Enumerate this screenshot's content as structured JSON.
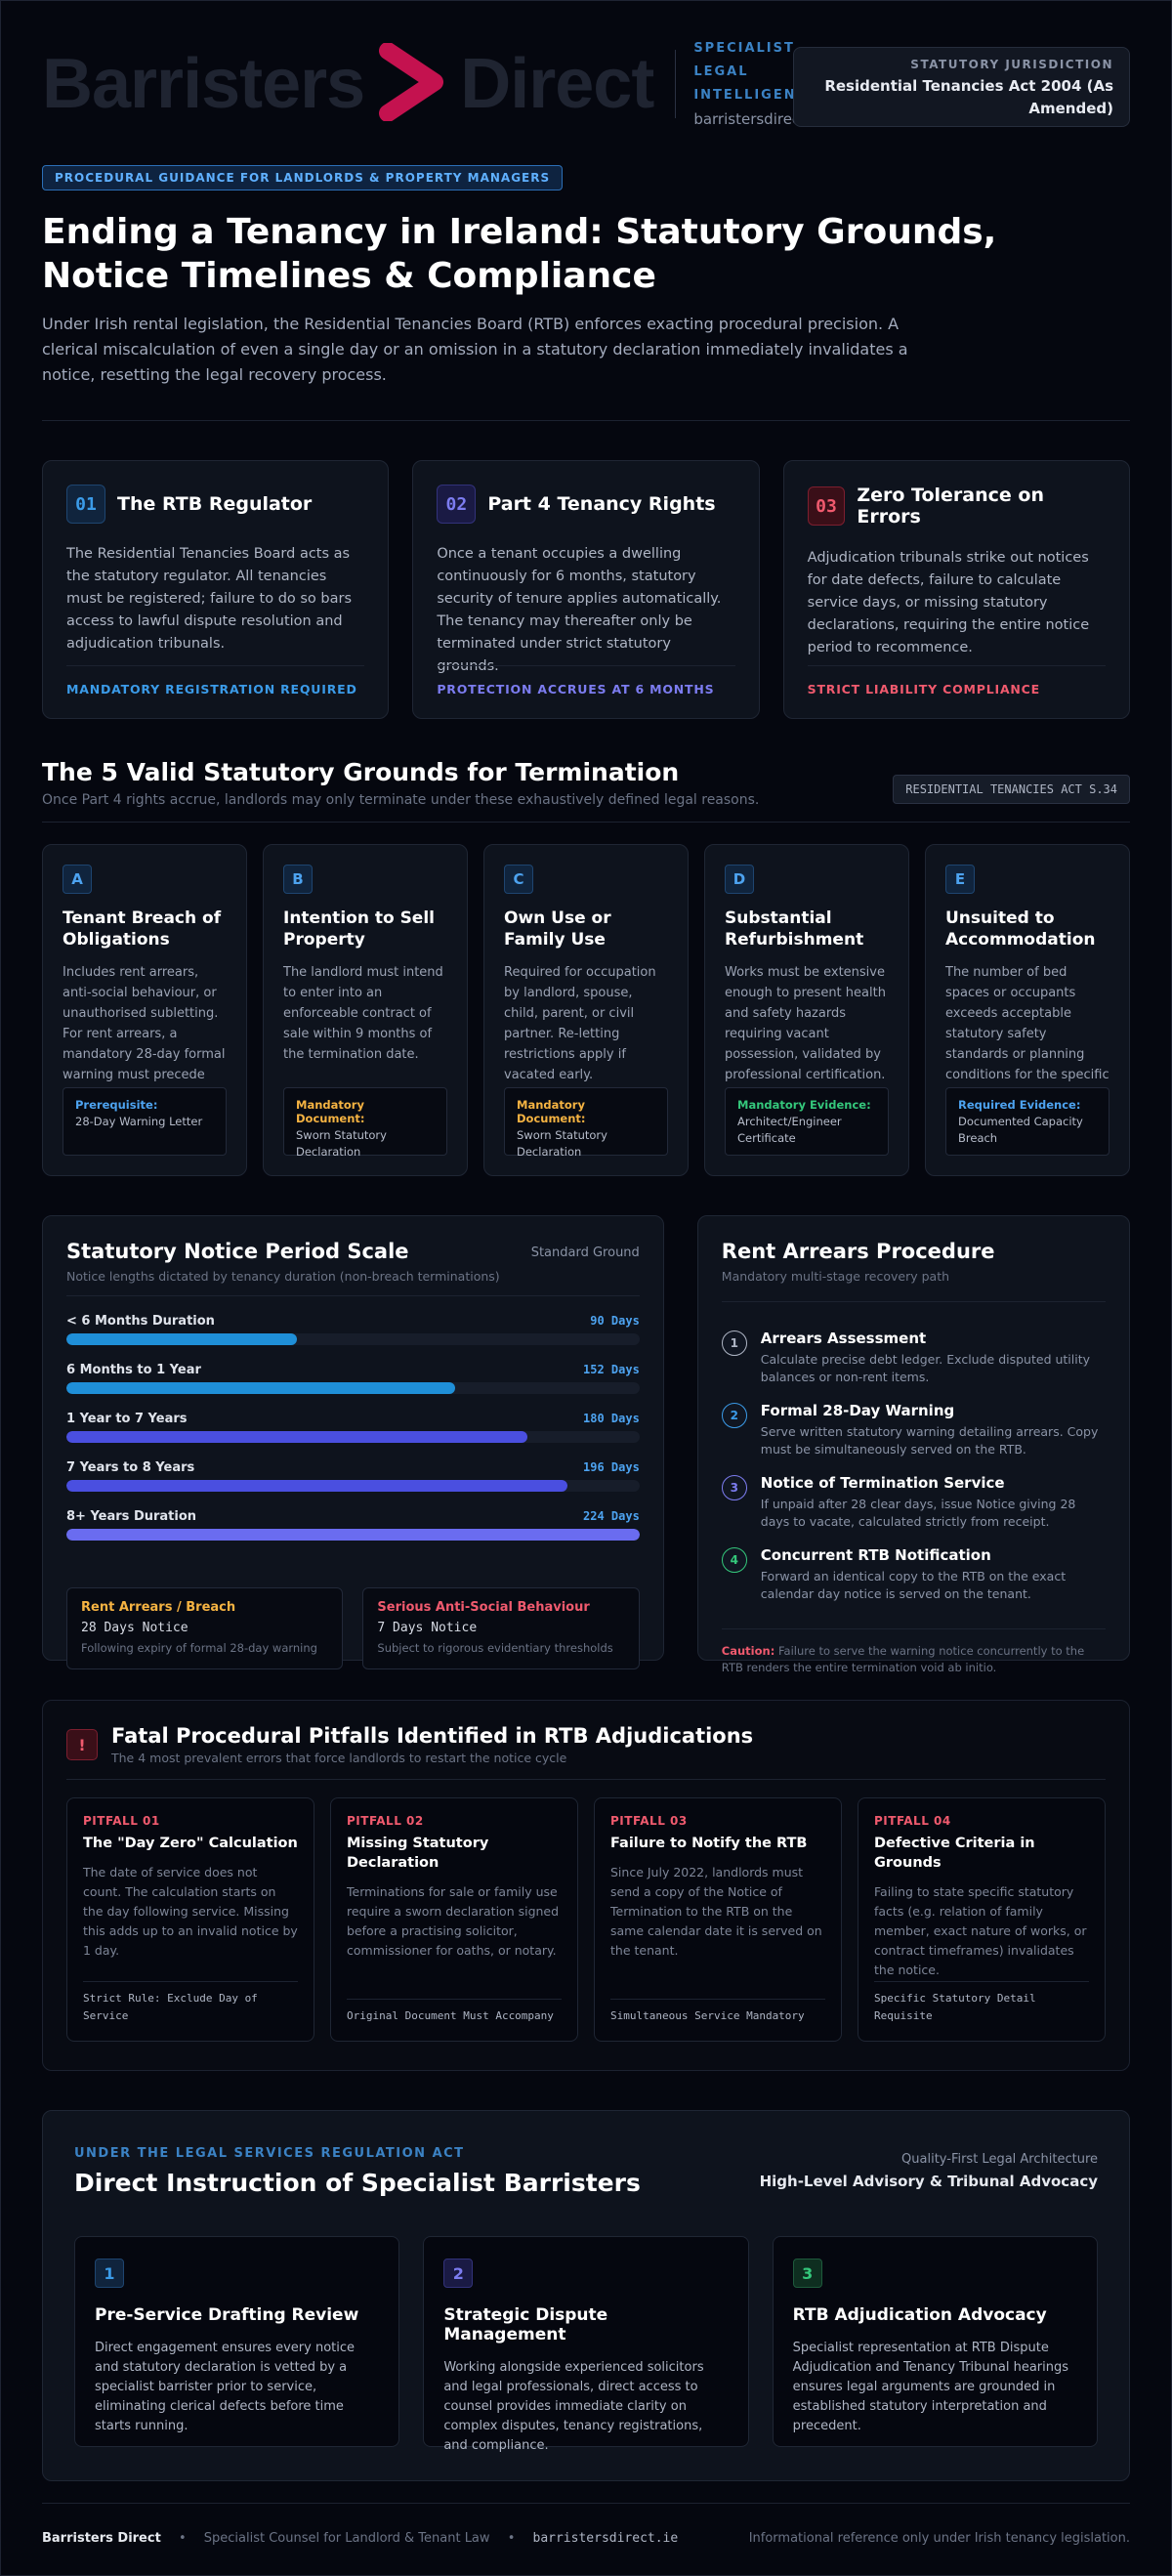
{
  "header": {
    "logo_left": "Barristers",
    "logo_right": "Direct",
    "tagline": [
      "SPECIALIST",
      "LEGAL",
      "INTELLIGENCE"
    ],
    "url": "barristersdirect.ie",
    "jurisdiction_label": "STATUTORY JURISDICTION",
    "jurisdiction_value": "Residential Tenancies Act 2004 (As Amended)"
  },
  "intro": {
    "pill": "PROCEDURAL GUIDANCE FOR LANDLORDS & PROPERTY MANAGERS",
    "title": "Ending a Tenancy in Ireland: Statutory Grounds, Notice Timelines & Compliance",
    "lead": "Under Irish rental legislation, the Residential Tenancies Board (RTB) enforces exacting procedural precision. A clerical miscalculation of even a single day or an omission in a statutory declaration immediately invalidates a notice, resetting the legal recovery process."
  },
  "pillars": [
    {
      "num": "01",
      "title": "The RTB Regulator",
      "body": "The Residential Tenancies Board acts as the statutory regulator. All tenancies must be registered; failure to do so bars access to lawful dispute resolution and adjudication tribunals.",
      "foot": "MANDATORY REGISTRATION REQUIRED",
      "color": "#3b9be8",
      "bg": "#10243d",
      "border": "#1e4570"
    },
    {
      "num": "02",
      "title": "Part 4 Tenancy Rights",
      "body": "Once a tenant occupies a dwelling continuously for 6 months, statutory security of tenure applies automatically. The tenancy may thereafter only be terminated under strict statutory grounds.",
      "foot": "PROTECTION ACCRUES AT 6 MONTHS",
      "color": "#7c7cf0",
      "bg": "#1a1a44",
      "border": "#32327a"
    },
    {
      "num": "03",
      "title": "Zero Tolerance on Errors",
      "body": "Adjudication tribunals strike out notices for date defects, failure to calculate service days, or missing statutory declarations, requiring the entire notice period to recommence.",
      "foot": "STRICT LIABILITY COMPLIANCE",
      "color": "#f05a6e",
      "bg": "#3a0f18",
      "border": "#7c1f2f"
    }
  ],
  "grounds_section": {
    "title": "The 5 Valid Statutory Grounds for Termination",
    "subtitle": "Once Part 4 rights accrue, landlords may only terminate under these exhaustively defined legal reasons.",
    "tag": "RESIDENTIAL TENANCIES ACT S.34",
    "items": [
      {
        "letter": "A",
        "title": "Tenant Breach of Obligations",
        "body": "Includes rent arrears, anti-social behaviour, or unauthorised subletting. For rent arrears, a mandatory 28-day formal warning must precede notice service.",
        "req_label": "Prerequisite:",
        "req_value": "28-Day Warning Letter",
        "req_color": "#4da3f0"
      },
      {
        "letter": "B",
        "title": "Intention to Sell Property",
        "body": "The landlord must intend to enter into an enforceable contract of sale within 9 months of the termination date.",
        "req_label": "Mandatory Document:",
        "req_value": "Sworn Statutory Declaration",
        "req_color": "#f5b342"
      },
      {
        "letter": "C",
        "title": "Own Use or Family Use",
        "body": "Required for occupation by landlord, spouse, child, parent, or civil partner. Re-letting restrictions apply if vacated early.",
        "req_label": "Mandatory Document:",
        "req_value": "Sworn Statutory Declaration",
        "req_color": "#f5b342"
      },
      {
        "letter": "D",
        "title": "Substantial Refurbishment",
        "body": "Works must be extensive enough to present health and safety hazards requiring vacant possession, validated by professional certification.",
        "req_label": "Mandatory Evidence:",
        "req_value": "Architect/Engineer Certificate",
        "req_color": "#34c77b"
      },
      {
        "letter": "E",
        "title": "Unsuited to Accommodation",
        "body": "The number of bed spaces or occupants exceeds acceptable statutory safety standards or planning conditions for the specific dwelling.",
        "req_label": "Required Evidence:",
        "req_value": "Documented Capacity Breach",
        "req_color": "#4da3f0"
      }
    ]
  },
  "notice_scale": {
    "title": "Statutory Notice Period Scale",
    "subtitle": "Notice lengths dictated by tenancy duration (non-breach terminations)",
    "right_label": "Standard Ground",
    "max_days": 224,
    "bars": [
      {
        "label": "< 6 Months Duration",
        "days_text": "90 Days",
        "days": 90,
        "color": "#1f8fd8"
      },
      {
        "label": "6 Months to 1 Year",
        "days_text": "152 Days",
        "days": 152,
        "color": "#1f8fd8"
      },
      {
        "label": "1 Year to 7 Years",
        "days_text": "180 Days",
        "days": 180,
        "color": "#4a4fe0"
      },
      {
        "label": "7 Years to 8 Years",
        "days_text": "196 Days",
        "days": 196,
        "color": "#4a4fe0"
      },
      {
        "label": "8+ Years Duration",
        "days_text": "224 Days",
        "days": 224,
        "color": "#6a6cf0"
      }
    ],
    "label_colors": [
      "#4da3f0",
      "#4da3f0",
      "#4da3f0",
      "#4da3f0",
      "#4da3f0"
    ],
    "mini": [
      {
        "head": "Rent Arrears / Breach",
        "main": "28 Days Notice",
        "sub": "Following expiry of formal 28-day warning",
        "color": "#f5b342"
      },
      {
        "head": "Serious Anti-Social Behaviour",
        "main": "7 Days Notice",
        "sub": "Subject to rigorous evidentiary thresholds",
        "color": "#f05a6e"
      }
    ]
  },
  "arrears": {
    "title": "Rent Arrears Procedure",
    "subtitle": "Mandatory multi-stage recovery path",
    "steps": [
      {
        "n": "1",
        "title": "Arrears Assessment",
        "body": "Calculate precise debt ledger. Exclude disputed utility balances or non-rent items.",
        "color": "#aeb5c4"
      },
      {
        "n": "2",
        "title": "Formal 28-Day Warning",
        "body": "Serve written statutory warning detailing arrears. Copy must be simultaneously served on the RTB.",
        "color": "#3b9be8"
      },
      {
        "n": "3",
        "title": "Notice of Termination Service",
        "body": "If unpaid after 28 clear days, issue Notice giving 28 days to vacate, calculated strictly from receipt.",
        "color": "#7c7cf0"
      },
      {
        "n": "4",
        "title": "Concurrent RTB Notification",
        "body": "Forward an identical copy to the RTB on the exact calendar day notice is served on the tenant.",
        "color": "#34c77b"
      }
    ],
    "caution_label": "Caution:",
    "caution_text": "Failure to serve the warning notice concurrently to the RTB renders the entire termination void ab initio."
  },
  "pitfalls": {
    "icon": "!",
    "title": "Fatal Procedural Pitfalls Identified in RTB Adjudications",
    "subtitle": "The 4 most prevalent errors that force landlords to restart the notice cycle",
    "items": [
      {
        "tag": "PITFALL 01",
        "title": "The \"Day Zero\" Calculation",
        "body": "The date of service does not count. The calculation starts on the day following service. Missing this adds up to an invalid notice by 1 day.",
        "foot": "Strict Rule: Exclude Day of Service"
      },
      {
        "tag": "PITFALL 02",
        "title": "Missing Statutory Declaration",
        "body": "Terminations for sale or family use require a sworn declaration signed before a practising solicitor, commissioner for oaths, or notary.",
        "foot": "Original Document Must Accompany"
      },
      {
        "tag": "PITFALL 03",
        "title": "Failure to Notify the RTB",
        "body": "Since July 2022, landlords must send a copy of the Notice of Termination to the RTB on the same calendar date it is served on the tenant.",
        "foot": "Simultaneous Service Mandatory"
      },
      {
        "tag": "PITFALL 04",
        "title": "Defective Criteria in Grounds",
        "body": "Failing to state specific statutory facts (e.g. relation of family member, exact nature of works, or contract timeframes) invalidates the notice.",
        "foot": "Specific Statutory Detail Requisite"
      }
    ]
  },
  "instruction": {
    "eyebrow": "UNDER THE LEGAL SERVICES REGULATION ACT",
    "title": "Direct Instruction of Specialist Barristers",
    "right_a": "Quality-First Legal Architecture",
    "right_b": "High-Level Advisory & Tribunal Advocacy",
    "cards": [
      {
        "n": "1",
        "title": "Pre-Service Drafting Review",
        "body": "Direct engagement ensures every notice and statutory declaration is vetted by a specialist barrister prior to service, eliminating clerical defects before time starts running.",
        "color": "#3b9be8",
        "bg": "#10243d",
        "border": "#1e4570"
      },
      {
        "n": "2",
        "title": "Strategic Dispute Management",
        "body": "Working alongside experienced solicitors and legal professionals, direct access to counsel provides immediate clarity on complex disputes, tenancy registrations, and compliance.",
        "color": "#7c7cf0",
        "bg": "#1a1a44",
        "border": "#32327a"
      },
      {
        "n": "3",
        "title": "RTB Adjudication Advocacy",
        "body": "Specialist representation at RTB Dispute Adjudication and Tenancy Tribunal hearings ensures legal arguments are grounded in established statutory interpretation and precedent.",
        "color": "#34c77b",
        "bg": "#0e2e20",
        "border": "#1e5a3c"
      }
    ]
  },
  "footer": {
    "brand": "Barristers Direct",
    "desc": "Specialist Counsel for Landlord & Tenant Law",
    "url": "barristersdirect.ie",
    "disclaimer": "Informational reference only under Irish tenancy legislation."
  }
}
